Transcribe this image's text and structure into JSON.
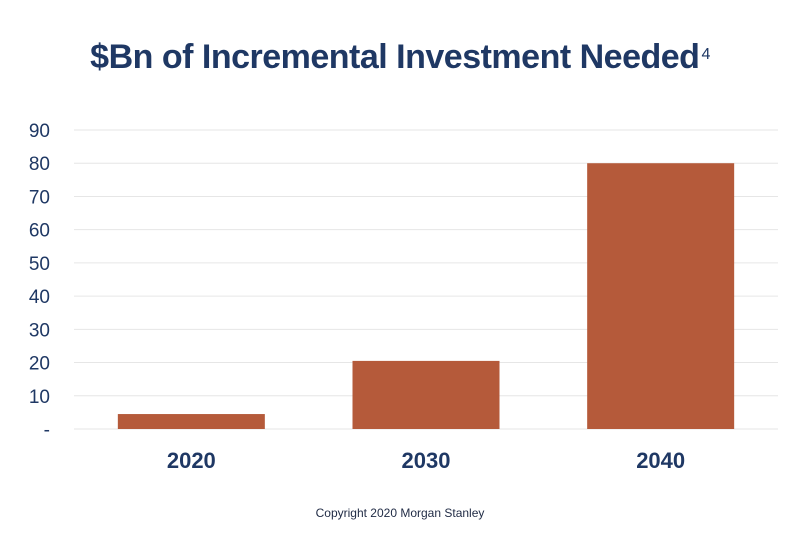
{
  "title": {
    "text": "$Bn of Incremental Investment Needed",
    "superscript": "4"
  },
  "footer": "Copyright 2020 Morgan Stanley",
  "colors": {
    "bar": "#b55a3a",
    "text": "#1f3864",
    "grid": "#e6e6e6"
  },
  "chart_data": {
    "type": "bar",
    "categories": [
      "2020",
      "2030",
      "2040"
    ],
    "values": [
      4.5,
      20.5,
      80
    ],
    "ylim": [
      0,
      90
    ],
    "yticks": [
      0,
      10,
      20,
      30,
      40,
      50,
      60,
      70,
      80,
      90
    ],
    "ytick_labels": [
      "-",
      "10",
      "20",
      "30",
      "40",
      "50",
      "60",
      "70",
      "80",
      "90"
    ],
    "grid": true,
    "xlabel": "",
    "ylabel": ""
  }
}
